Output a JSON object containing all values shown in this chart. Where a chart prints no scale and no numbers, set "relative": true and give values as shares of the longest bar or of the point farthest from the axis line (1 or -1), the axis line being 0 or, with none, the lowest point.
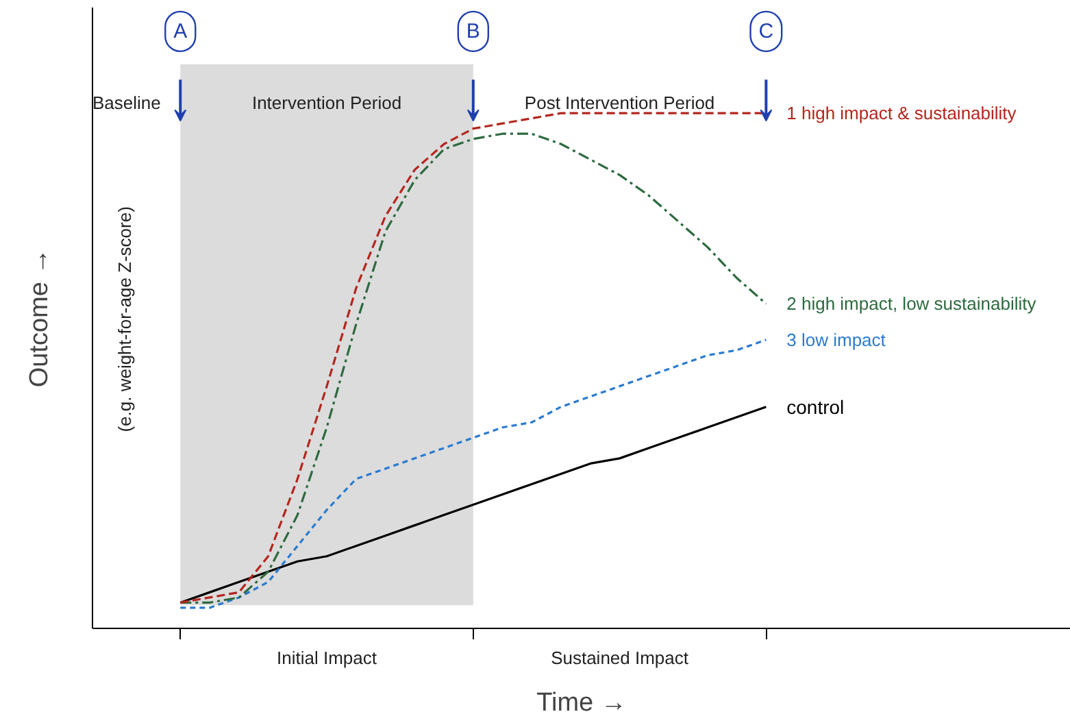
{
  "chart_data": {
    "type": "line",
    "relative": true,
    "grid": false,
    "xlabel": "Time →",
    "ylabel": "Outcome →",
    "categories": [
      null,
      null,
      null,
      null,
      null,
      null,
      null,
      null,
      null,
      null,
      null,
      null,
      null,
      null,
      null,
      null,
      null,
      null,
      null,
      null,
      null
    ],
    "series": [
      {
        "name": "1 high impact & sustainability",
        "color": "#b3261e",
        "line_style": "dashed",
        "values": [
          0.05,
          0.06,
          0.07,
          0.14,
          0.29,
          0.47,
          0.66,
          0.8,
          0.89,
          0.94,
          0.97,
          0.98,
          0.99,
          1,
          1,
          1,
          1,
          1,
          1,
          1,
          1
        ]
      },
      {
        "name": "2 high impact, low sustainability",
        "color": "#2d6a3e",
        "line_style": "dashdot",
        "values": [
          0.05,
          0.05,
          0.06,
          0.11,
          0.22,
          0.39,
          0.59,
          0.77,
          0.87,
          0.93,
          0.95,
          0.96,
          0.96,
          0.94,
          0.91,
          0.88,
          0.84,
          0.79,
          0.74,
          0.68,
          0.63
        ]
      },
      {
        "name": "3 low impact",
        "color": "#2a7bd0",
        "line_style": "dotted",
        "values": [
          0.04,
          0.04,
          0.06,
          0.09,
          0.16,
          0.23,
          0.29,
          0.31,
          0.33,
          0.35,
          0.37,
          0.39,
          0.4,
          0.43,
          0.45,
          0.47,
          0.49,
          0.51,
          0.53,
          0.54,
          0.56
        ]
      },
      {
        "name": "control",
        "color": "#000000",
        "line_style": "solid",
        "values": [
          0.05,
          0.07,
          0.09,
          0.11,
          0.13,
          0.14,
          0.16,
          0.18,
          0.2,
          0.22,
          0.24,
          0.26,
          0.28,
          0.3,
          0.32,
          0.33,
          0.35,
          0.37,
          0.39,
          0.41,
          0.43
        ]
      }
    ],
    "annotations": [
      "Baseline",
      "Post Intervention Period",
      "Initial Impact",
      "Sustained Impact",
      "(e.g. weight-for-age Z-score)",
      "A",
      "B",
      "C",
      "Intervention Period"
    ]
  }
}
